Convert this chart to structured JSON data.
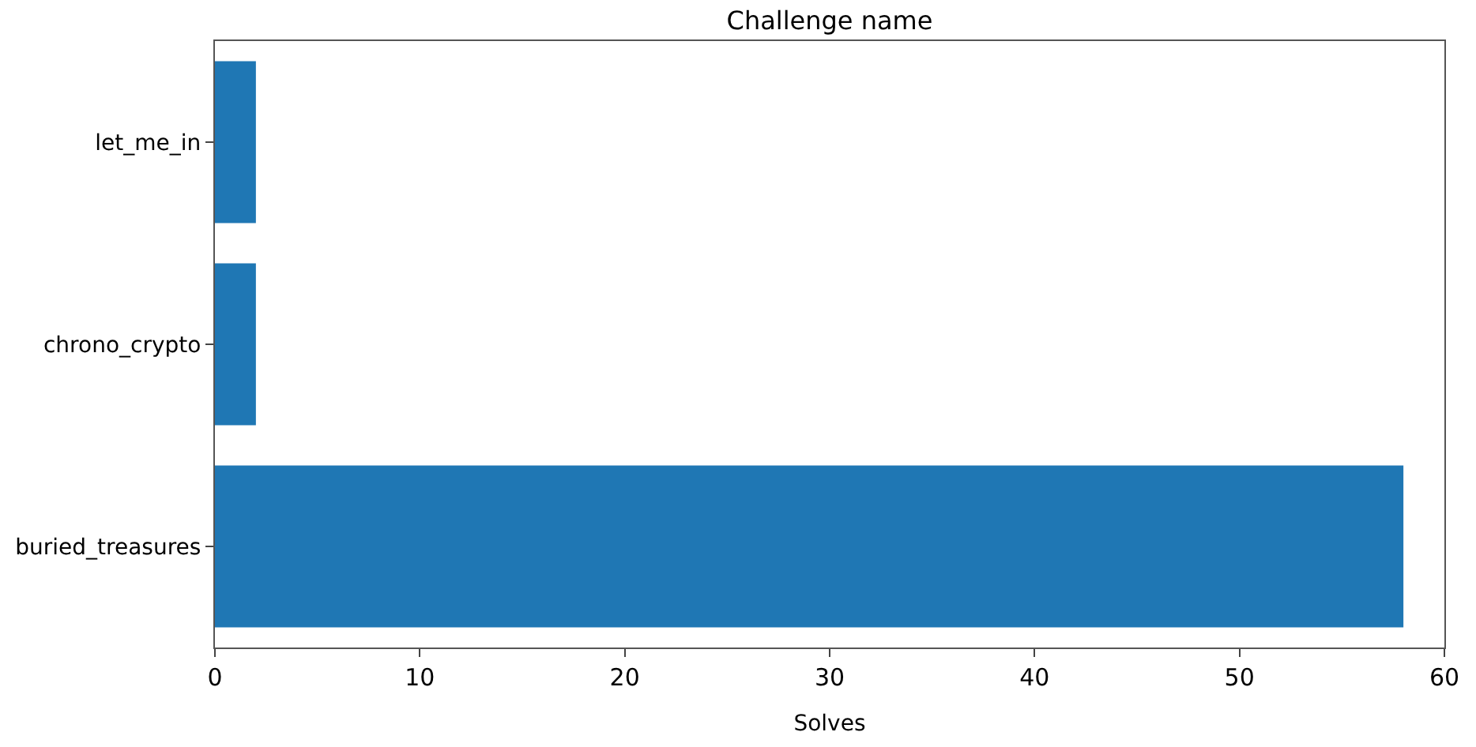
{
  "chart_data": {
    "type": "bar",
    "orientation": "horizontal",
    "title": "Challenge name",
    "xlabel": "Solves",
    "categories": [
      "let_me_in",
      "chrono_crypto",
      "buried_treasures"
    ],
    "values": [
      2,
      2,
      58
    ],
    "color": "#1f77b4",
    "xlim": [
      0,
      60
    ],
    "xticks": [
      0,
      10,
      20,
      30,
      40,
      50,
      60
    ]
  }
}
